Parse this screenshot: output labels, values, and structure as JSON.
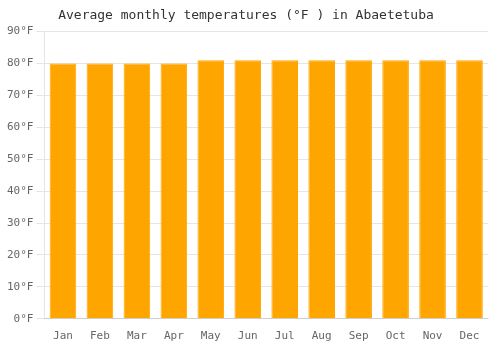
{
  "chart_data": {
    "type": "bar",
    "title": "Average monthly temperatures (°F ) in Abaetetuba",
    "categories": [
      "Jan",
      "Feb",
      "Mar",
      "Apr",
      "May",
      "Jun",
      "Jul",
      "Aug",
      "Sep",
      "Oct",
      "Nov",
      "Dec"
    ],
    "values": [
      80,
      80,
      80,
      80,
      81,
      81,
      81,
      81,
      81,
      81,
      81,
      81
    ],
    "color": "#FFA500",
    "ylim": [
      0,
      90
    ],
    "yticks": [
      {
        "value": 0,
        "label": "0°F"
      },
      {
        "value": 10,
        "label": "10°F"
      },
      {
        "value": 20,
        "label": "20°F"
      },
      {
        "value": 30,
        "label": "30°F"
      },
      {
        "value": 40,
        "label": "40°F"
      },
      {
        "value": 50,
        "label": "50°F"
      },
      {
        "value": 60,
        "label": "60°F"
      },
      {
        "value": 70,
        "label": "70°F"
      },
      {
        "value": 80,
        "label": "80°F"
      },
      {
        "value": 90,
        "label": "90°F"
      }
    ],
    "grid": true
  }
}
